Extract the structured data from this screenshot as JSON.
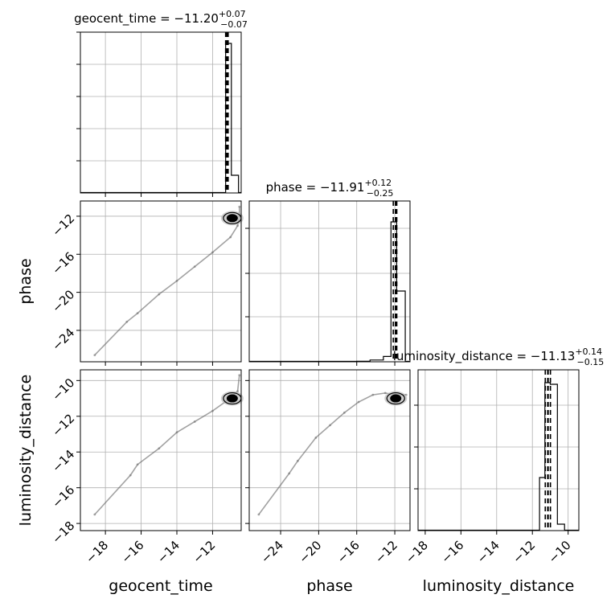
{
  "chart_data": {
    "type": "scatter",
    "subtype": "corner-plot",
    "parameters": [
      "geocent_time",
      "phase",
      "luminosity_distance"
    ],
    "panels": {
      "hist_geocent_time": {
        "type": "histogram",
        "title": "geocent_time = −11.20",
        "title_sup": "+0.07",
        "title_sub": "−0.07",
        "median": -11.2,
        "quantiles": [
          -11.27,
          -11.13
        ],
        "xlim": [
          -19.4,
          -10.4
        ],
        "bins": [
          {
            "x0": -11.27,
            "x1": -10.95,
            "height": 0.93
          },
          {
            "x0": -10.95,
            "x1": -10.55,
            "height": 0.11
          }
        ]
      },
      "hist_phase": {
        "type": "histogram",
        "title": "phase = −11.91",
        "title_sup": "+0.12",
        "title_sub": "−0.25",
        "median": -11.91,
        "quantiles": [
          -12.16,
          -11.79
        ],
        "xlim": [
          -27.3,
          -10.4
        ],
        "bins": [
          {
            "x0": -16.0,
            "x1": -14.6,
            "height": 0.003
          },
          {
            "x0": -14.6,
            "x1": -13.2,
            "height": 0.011
          },
          {
            "x0": -13.2,
            "x1": -12.4,
            "height": 0.033
          },
          {
            "x0": -12.4,
            "x1": -11.8,
            "height": 0.87
          },
          {
            "x0": -11.8,
            "x1": -10.9,
            "height": 0.44
          }
        ]
      },
      "hist_luminosity_distance": {
        "type": "histogram",
        "title": "luminosity_distance = −11.13",
        "title_sup": "+0.14",
        "title_sub": "−0.15",
        "median": -11.13,
        "quantiles": [
          -11.28,
          -10.99
        ],
        "xlim": [
          -18.4,
          -9.4
        ],
        "bins": [
          {
            "x0": -11.6,
            "x1": -11.3,
            "height": 0.33
          },
          {
            "x0": -11.3,
            "x1": -11.0,
            "height": 0.92
          },
          {
            "x0": -11.0,
            "x1": -10.6,
            "height": 0.91
          },
          {
            "x0": -10.6,
            "x1": -10.2,
            "height": 0.04
          }
        ]
      },
      "phase_vs_geocent_time": {
        "type": "scatter",
        "xlim": [
          -19.4,
          -10.4
        ],
        "ylim": [
          -27.3,
          -10.4
        ],
        "core": {
          "x": -10.9,
          "y": -12.2
        },
        "trail": [
          [
            -18.6,
            -26.6
          ],
          [
            -16.8,
            -23.1
          ],
          [
            -16.2,
            -22.2
          ],
          [
            -15.0,
            -20.2
          ],
          [
            -14.0,
            -18.8
          ],
          [
            -13.0,
            -17.3
          ],
          [
            -12.0,
            -15.8
          ],
          [
            -11.0,
            -14.2
          ],
          [
            -10.6,
            -13.0
          ],
          [
            -10.5,
            -12.0
          ],
          [
            -10.5,
            -11.0
          ]
        ]
      },
      "luminosity_distance_vs_geocent_time": {
        "type": "scatter",
        "xlim": [
          -19.4,
          -10.4
        ],
        "ylim": [
          -18.4,
          -9.4
        ],
        "core": {
          "x": -10.9,
          "y": -11.0
        },
        "trail": [
          [
            -18.6,
            -17.5
          ],
          [
            -16.6,
            -15.3
          ],
          [
            -16.2,
            -14.7
          ],
          [
            -15.0,
            -13.8
          ],
          [
            -14.0,
            -12.9
          ],
          [
            -13.0,
            -12.3
          ],
          [
            -12.0,
            -11.7
          ],
          [
            -11.3,
            -11.2
          ],
          [
            -10.6,
            -10.6
          ],
          [
            -10.5,
            -9.7
          ]
        ]
      },
      "luminosity_distance_vs_phase": {
        "type": "scatter",
        "xlim": [
          -27.3,
          -10.4
        ],
        "ylim": [
          -18.4,
          -9.4
        ],
        "core": {
          "x": -11.9,
          "y": -11.0
        },
        "trail": [
          [
            -26.3,
            -17.5
          ],
          [
            -23.1,
            -15.2
          ],
          [
            -22.2,
            -14.5
          ],
          [
            -20.3,
            -13.2
          ],
          [
            -18.8,
            -12.5
          ],
          [
            -17.3,
            -11.8
          ],
          [
            -15.8,
            -11.2
          ],
          [
            -14.3,
            -10.8
          ],
          [
            -13.0,
            -10.7
          ],
          [
            -11.9,
            -10.8
          ],
          [
            -10.8,
            -10.8
          ]
        ]
      }
    },
    "axes": {
      "x_labels": [
        "geocent_time",
        "phase",
        "luminosity_distance"
      ],
      "y_labels": [
        "phase",
        "luminosity_distance"
      ],
      "geocent_time_ticks": [
        "−18",
        "−16",
        "−14",
        "−12"
      ],
      "phase_ticks": [
        "−24",
        "−20",
        "−16",
        "−12"
      ],
      "phase_y_ticks": [
        "−12",
        "−16",
        "−20",
        "−24"
      ],
      "luminosity_distance_x_ticks": [
        "−18",
        "−16",
        "−14",
        "−12",
        "−10"
      ],
      "luminosity_distance_y_ticks": [
        "−10",
        "−12",
        "−14",
        "−16",
        "−18"
      ]
    },
    "grid": true
  }
}
